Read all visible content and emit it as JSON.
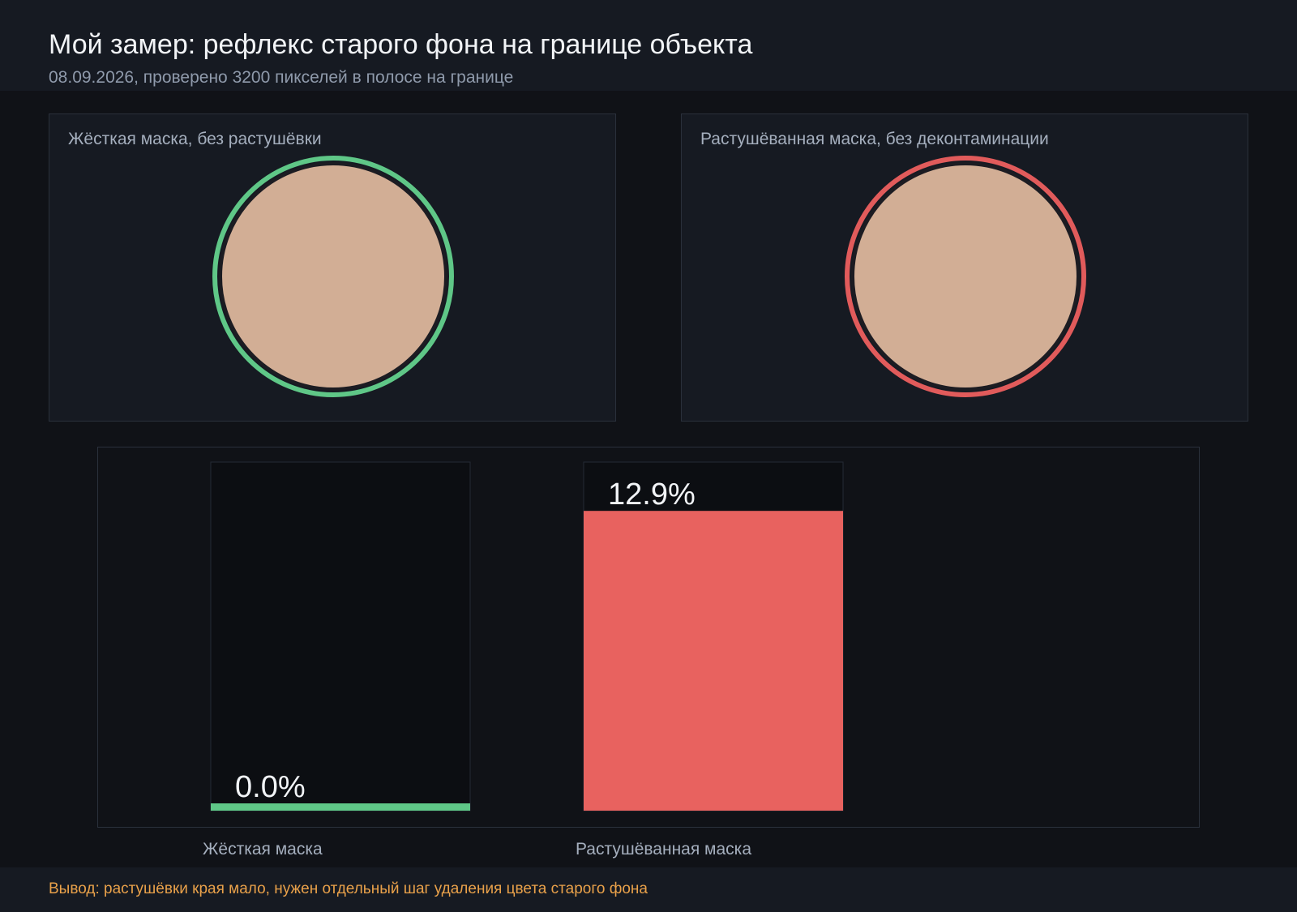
{
  "header": {
    "title": "Мой замер: рефлекс старого фона на границе объекта",
    "subtitle": "08.09.2026, проверено 3200 пикселей в полосе на границе"
  },
  "panels": [
    {
      "label": "Жёсткая маска, без растушёвки",
      "ring_color": "#5fc787"
    },
    {
      "label": "Растушёванная маска, без деконтаминации",
      "ring_color": "#e15b5b"
    }
  ],
  "colors": {
    "subject_fill": "#d2ae95",
    "good": "#5fc787",
    "bad": "#e8625f",
    "accent": "#e9a14a"
  },
  "chart_data": {
    "type": "bar",
    "categories": [
      "Жёсткая маска",
      "Растушёванная маска"
    ],
    "values": [
      0.0,
      12.9
    ],
    "value_labels": [
      "0.0%",
      "12.9%"
    ],
    "unit": "%",
    "ylim": [
      0,
      15
    ],
    "colors": [
      "#5fc787",
      "#e8625f"
    ],
    "title": "",
    "xlabel": "",
    "ylabel": "",
    "grid": false
  },
  "footer": {
    "conclusion": "Вывод: растушёвки края мало, нужен отдельный шаг удаления цвета старого фона"
  }
}
